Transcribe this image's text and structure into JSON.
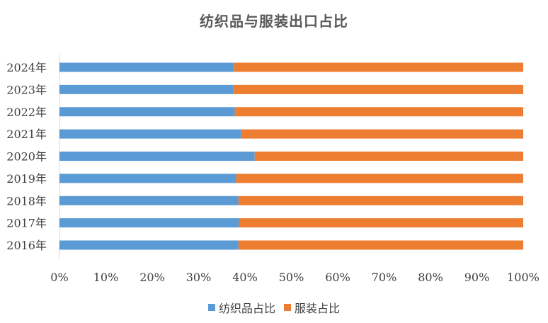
{
  "chart_data": {
    "type": "bar",
    "orientation": "horizontal",
    "stacked": "percent",
    "title": "纺织品与服装出口占比",
    "categories": [
      "2024年",
      "2023年",
      "2022年",
      "2021年",
      "2020年",
      "2019年",
      "2018年",
      "2017年",
      "2016年"
    ],
    "series": [
      {
        "name": "纺织品占比",
        "color": "#5B9BD5",
        "values": [
          37.6,
          37.5,
          37.8,
          39.2,
          42.1,
          38.1,
          38.6,
          38.7,
          38.6
        ]
      },
      {
        "name": "服装占比",
        "color": "#ED7D31",
        "values": [
          62.4,
          62.5,
          62.2,
          60.8,
          57.9,
          61.9,
          61.4,
          61.3,
          61.4
        ]
      }
    ],
    "x_ticks": [
      "0%",
      "10%",
      "20%",
      "30%",
      "40%",
      "50%",
      "60%",
      "70%",
      "80%",
      "90%",
      "100%"
    ],
    "xlim": [
      0,
      100
    ],
    "grid": false,
    "legend_position": "bottom"
  }
}
